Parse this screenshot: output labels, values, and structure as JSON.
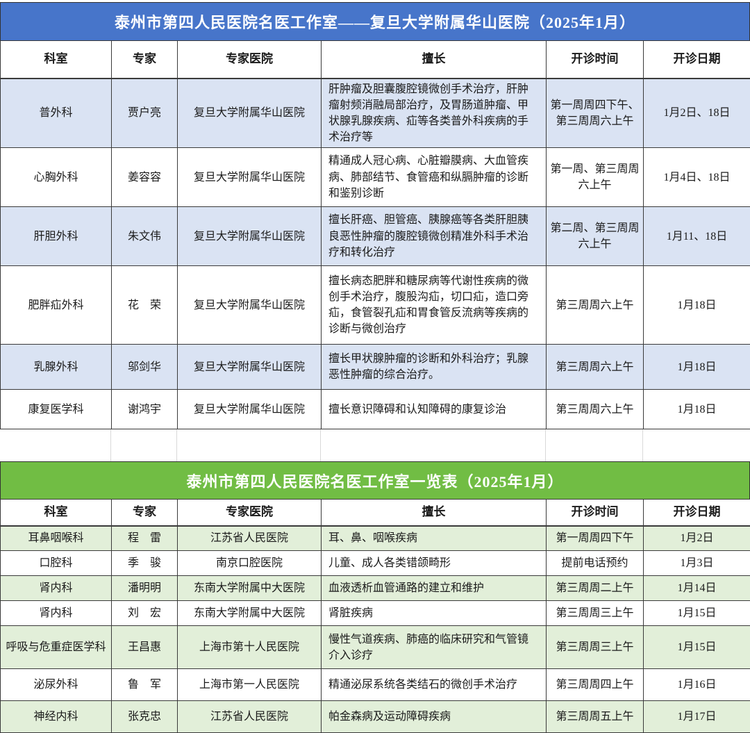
{
  "huashan_table": {
    "title": "泰州市第四人民医院名医工作室——复旦大学附属华山医院（2025年1月）",
    "accent_color": "#4775CA",
    "row_tint": "#DAE3F3",
    "headers": [
      "科室",
      "专家",
      "专家医院",
      "擅长",
      "开诊时间",
      "开诊日期"
    ],
    "rows": [
      {
        "dept": "普外科",
        "expert": "贾户亮",
        "hospital": "复旦大学附属华山医院",
        "specialty": "肝肿瘤及胆囊腹腔镜微创手术治疗，肝肿瘤射频消融局部治疗，及胃肠道肿瘤、甲状腺乳腺疾病、疝等各类普外科疾病的手术治疗等",
        "time": "第一周周四下午、第三周周六上午",
        "date": "1月2日、18日"
      },
      {
        "dept": "心胸外科",
        "expert": "姜容容",
        "hospital": "复旦大学附属华山医院",
        "specialty": "精通成人冠心病、心脏瓣膜病、大血管疾病、肺部结节、食管癌和纵膈肿瘤的诊断和鉴别诊断",
        "time": "第一周、第三周周六上午",
        "date": "1月4日、18日"
      },
      {
        "dept": "肝胆外科",
        "expert": "朱文伟",
        "hospital": "复旦大学附属华山医院",
        "specialty": "擅长肝癌、胆管癌、胰腺癌等各类肝胆胰良恶性肿瘤的腹腔镜微创精准外科手术治疗和转化治疗",
        "time": "第二周、第三周周六上午",
        "date": "1月11、18日"
      },
      {
        "dept": "肥胖疝外科",
        "expert": "花　荣",
        "hospital": "复旦大学附属华山医院",
        "specialty": "擅长病态肥胖和糖尿病等代谢性疾病的微创手术治疗，腹股沟疝，切口疝，造口旁疝，食管裂孔疝和胃食管反流病等疾病的诊断与微创治疗",
        "time": "第三周周六上午",
        "date": "1月18日"
      },
      {
        "dept": "乳腺外科",
        "expert": "邬剑华",
        "hospital": "复旦大学附属华山医院",
        "specialty": "擅长甲状腺肿瘤的诊断和外科治疗；乳腺恶性肿瘤的综合治疗。",
        "time": "第三周周六上午",
        "date": "1月18日"
      },
      {
        "dept": "康复医学科",
        "expert": "谢鸿宇",
        "hospital": "复旦大学附属华山医院",
        "specialty": "擅长意识障碍和认知障碍的康复诊治",
        "time": "第三周周六上午",
        "date": "1月18日"
      }
    ]
  },
  "overview_table": {
    "title": "泰州市第四人民医院名医工作室一览表（2025年1月）",
    "accent_color": "#71BD44",
    "row_tint": "#E2EFD9",
    "headers": [
      "科室",
      "专家",
      "专家医院",
      "擅长",
      "开诊时间",
      "开诊日期"
    ],
    "rows": [
      {
        "dept": "耳鼻咽喉科",
        "expert": "程　雷",
        "hospital": "江苏省人民医院",
        "specialty": "耳、鼻、咽喉疾病",
        "time": "第一周周四下午",
        "date": "1月2日"
      },
      {
        "dept": "口腔科",
        "expert": "季　骏",
        "hospital": "南京口腔医院",
        "specialty": "儿童、成人各类错颌畸形",
        "time": "提前电话预约",
        "date": "1月3日"
      },
      {
        "dept": "肾内科",
        "expert": "潘明明",
        "hospital": "东南大学附属中大医院",
        "specialty": "血液透析血管通路的建立和维护",
        "time": "第三周周二上午",
        "date": "1月14日"
      },
      {
        "dept": "肾内科",
        "expert": "刘　宏",
        "hospital": "东南大学附属中大医院",
        "specialty": "肾脏疾病",
        "time": "第三周周三上午",
        "date": "1月15日"
      },
      {
        "dept": "呼吸与危重症医学科",
        "expert": "王昌惠",
        "hospital": "上海市第十人民医院",
        "specialty": "慢性气道疾病、肺癌的临床研究和气管镜介入诊疗",
        "time": "第三周周三上午",
        "date": "1月15日"
      },
      {
        "dept": "泌尿外科",
        "expert": "鲁　军",
        "hospital": "上海市第一人民医院",
        "specialty": "精通泌尿系统各类结石的微创手术治疗",
        "time": "第三周周四上午",
        "date": "1月16日"
      },
      {
        "dept": "神经内科",
        "expert": "张克忠",
        "hospital": "江苏省人民医院",
        "specialty": "帕金森病及运动障碍疾病",
        "time": "第三周周五上午",
        "date": "1月17日"
      }
    ]
  }
}
